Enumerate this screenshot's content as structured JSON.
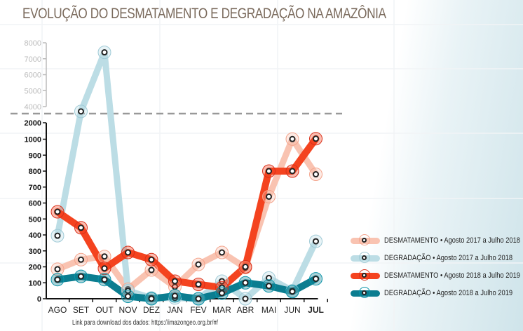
{
  "title": "EVOLUÇÃO DO DESMATAMENTO E DEGRADAÇÃO NA AMAZÔNIA",
  "source_note": "Link para download dos dados: https://imazongeo.org.br/#/",
  "legend_items": [
    {
      "label": "DESMATAMENTO • Agosto 2017 a Julho 2018",
      "color": "#f9c3b1",
      "ring": "#f4a48c"
    },
    {
      "label": "DEGRADAÇÃO • Agosto 2017 a Julho 2018",
      "color": "#bcdde5",
      "ring": "#9fcad6"
    },
    {
      "label": "DESMATAMENTO • Agosto 2018 a Julho 2019",
      "color": "#f4431f",
      "ring": "#d9301a"
    },
    {
      "label": "DEGRADAÇÃO • Agosto 2018 a Julho 2019",
      "color": "#0b7d90",
      "ring": "#0a93a8"
    }
  ],
  "chart_data": {
    "type": "line",
    "title": "EVOLUÇÃO DO DESMATAMENTO E DEGRADAÇÃO NA AMAZÔNIA",
    "xlabel": "",
    "ylabel": "",
    "categories": [
      "AGO",
      "SET",
      "OUT",
      "NOV",
      "DEZ",
      "JAN",
      "FEV",
      "MAR",
      "ABR",
      "MAI",
      "JUN",
      "JUL"
    ],
    "highlight_category": "JUL",
    "y_axis_lower": {
      "ticks": [
        0,
        100,
        200,
        300,
        400,
        500,
        600,
        700,
        800,
        900,
        1000,
        2000
      ],
      "range": [
        0,
        1000
      ]
    },
    "y_axis_upper": {
      "ticks": [
        4000,
        5000,
        6000,
        7000,
        8000
      ],
      "range": [
        4000,
        8000
      ]
    },
    "axis_break": true,
    "grid": true,
    "legend_position": "right",
    "series": [
      {
        "name": "DESMATAMENTO • Agosto 2017 a Julho 2018",
        "color": "#f9c3b1",
        "values": [
          185,
          245,
          265,
          60,
          180,
          75,
          215,
          290,
          195,
          640,
          1010,
          780
        ]
      },
      {
        "name": "DEGRADAÇÃO • Agosto 2017 a Julho 2018",
        "color": "#bcdde5",
        "values": [
          395,
          3400,
          7400,
          50,
          5,
          5,
          0,
          110,
          0,
          130,
          50,
          360
        ]
      },
      {
        "name": "DESMATAMENTO • Agosto 2018 a Julho 2019",
        "color": "#f4431f",
        "values": [
          545,
          445,
          190,
          290,
          245,
          110,
          90,
          70,
          200,
          800,
          800,
          1030
        ]
      },
      {
        "name": "DEGRADAÇÃO • Agosto 2018 a Julho 2019",
        "color": "#0b7d90",
        "values": [
          120,
          140,
          120,
          15,
          0,
          18,
          0,
          35,
          100,
          80,
          45,
          125
        ]
      }
    ]
  }
}
